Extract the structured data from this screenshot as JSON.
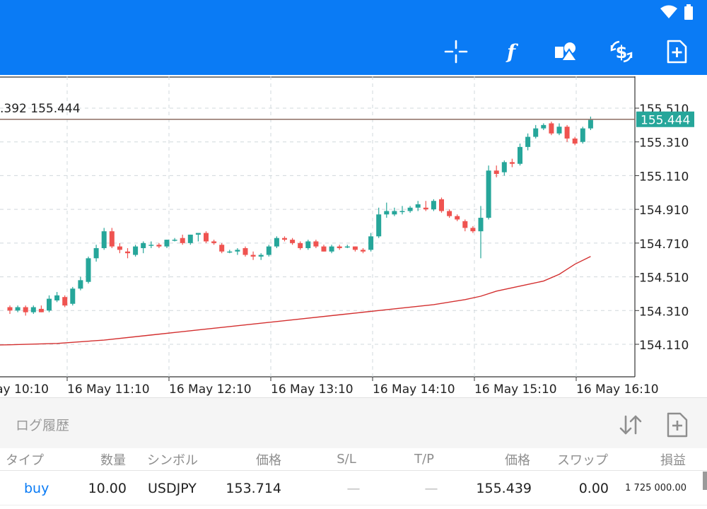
{
  "statusbar": {
    "icons": [
      "wifi-icon",
      "battery-icon"
    ]
  },
  "toolbar": {
    "buttons": [
      {
        "name": "crosshair-button",
        "icon": "crosshair-icon"
      },
      {
        "name": "indicators-button",
        "icon": "function-icon"
      },
      {
        "name": "objects-button",
        "icon": "shapes-icon"
      },
      {
        "name": "trade-button",
        "icon": "dollar-arrows-icon"
      },
      {
        "name": "new-order-button",
        "icon": "file-plus-icon"
      }
    ]
  },
  "chart": {
    "ohlc_label": ".392 155.444",
    "current_price": "155.444",
    "colors": {
      "bull": "#26a69a",
      "bear": "#ef5350",
      "ma": "#d32f2f",
      "price_line": "#8d6e63",
      "grid": "#d0d8dc"
    }
  },
  "chart_data": {
    "type": "candlestick",
    "y_ticks": [
      "155.510",
      "155.310",
      "155.110",
      "154.910",
      "154.710",
      "154.510",
      "154.310",
      "154.110"
    ],
    "x_ticks": [
      "ay 10:10",
      "16 May 11:10",
      "16 May 12:10",
      "16 May 13:10",
      "16 May 14:10",
      "16 May 15:10",
      "16 May 16:10"
    ],
    "ylim": [
      153.95,
      155.65
    ],
    "current_price": 155.444,
    "candles": [
      [
        154.33,
        154.34,
        154.29,
        154.31
      ],
      [
        154.31,
        154.34,
        154.3,
        154.33
      ],
      [
        154.33,
        154.34,
        154.28,
        154.3
      ],
      [
        154.3,
        154.34,
        154.29,
        154.33
      ],
      [
        154.32,
        154.34,
        154.3,
        154.3
      ],
      [
        154.31,
        154.4,
        154.3,
        154.38
      ],
      [
        154.37,
        154.42,
        154.36,
        154.4
      ],
      [
        154.39,
        154.4,
        154.33,
        154.34
      ],
      [
        154.35,
        154.45,
        154.34,
        154.44
      ],
      [
        154.44,
        154.51,
        154.43,
        154.49
      ],
      [
        154.48,
        154.63,
        154.47,
        154.62
      ],
      [
        154.62,
        154.7,
        154.6,
        154.68
      ],
      [
        154.68,
        154.8,
        154.67,
        154.78
      ],
      [
        154.78,
        154.8,
        154.68,
        154.69
      ],
      [
        154.69,
        154.71,
        154.65,
        154.67
      ],
      [
        154.66,
        154.68,
        154.62,
        154.65
      ],
      [
        154.64,
        154.7,
        154.63,
        154.69
      ],
      [
        154.68,
        154.72,
        154.65,
        154.71
      ],
      [
        154.7,
        154.72,
        154.68,
        154.7
      ],
      [
        154.7,
        154.71,
        154.68,
        154.69
      ],
      [
        154.69,
        154.73,
        154.68,
        154.73
      ],
      [
        154.73,
        154.74,
        154.72,
        154.73
      ],
      [
        154.74,
        154.76,
        154.7,
        154.71
      ],
      [
        154.71,
        154.76,
        154.7,
        154.76
      ],
      [
        154.76,
        154.77,
        154.72,
        154.77
      ],
      [
        154.77,
        154.78,
        154.71,
        154.72
      ],
      [
        154.72,
        154.73,
        154.7,
        154.71
      ],
      [
        154.7,
        154.71,
        154.65,
        154.66
      ],
      [
        154.66,
        154.67,
        154.65,
        154.66
      ],
      [
        154.66,
        154.68,
        154.64,
        154.67
      ],
      [
        154.68,
        154.69,
        154.63,
        154.64
      ],
      [
        154.64,
        154.66,
        154.61,
        154.63
      ],
      [
        154.63,
        154.65,
        154.61,
        154.64
      ],
      [
        154.64,
        154.7,
        154.63,
        154.69
      ],
      [
        154.69,
        154.75,
        154.68,
        154.74
      ],
      [
        154.74,
        154.75,
        154.72,
        154.73
      ],
      [
        154.73,
        154.74,
        154.7,
        154.71
      ],
      [
        154.71,
        154.72,
        154.67,
        154.68
      ],
      [
        154.68,
        154.73,
        154.67,
        154.72
      ],
      [
        154.72,
        154.73,
        154.68,
        154.69
      ],
      [
        154.69,
        154.7,
        154.66,
        154.66
      ],
      [
        154.66,
        154.7,
        154.65,
        154.69
      ],
      [
        154.69,
        154.7,
        154.67,
        154.68
      ],
      [
        154.69,
        154.7,
        154.68,
        154.69
      ],
      [
        154.69,
        154.69,
        154.66,
        154.67
      ],
      [
        154.67,
        154.68,
        154.65,
        154.66
      ],
      [
        154.67,
        154.77,
        154.66,
        154.75
      ],
      [
        154.75,
        154.92,
        154.74,
        154.88
      ],
      [
        154.88,
        154.95,
        154.86,
        154.9
      ],
      [
        154.88,
        154.92,
        154.87,
        154.9
      ],
      [
        154.9,
        154.93,
        154.88,
        154.9
      ],
      [
        154.9,
        154.93,
        154.89,
        154.92
      ],
      [
        154.92,
        154.96,
        154.9,
        154.94
      ],
      [
        154.92,
        154.96,
        154.9,
        154.91
      ],
      [
        154.91,
        154.97,
        154.9,
        154.96
      ],
      [
        154.97,
        154.98,
        154.89,
        154.9
      ],
      [
        154.9,
        154.91,
        154.86,
        154.87
      ],
      [
        154.87,
        154.88,
        154.84,
        154.85
      ],
      [
        154.84,
        154.85,
        154.78,
        154.8
      ],
      [
        154.8,
        154.81,
        154.77,
        154.78
      ],
      [
        154.78,
        154.93,
        154.62,
        154.86
      ],
      [
        154.86,
        155.17,
        154.85,
        155.14
      ],
      [
        155.14,
        155.17,
        155.1,
        155.12
      ],
      [
        155.13,
        155.2,
        155.11,
        155.19
      ],
      [
        155.19,
        155.21,
        155.16,
        155.18
      ],
      [
        155.18,
        155.3,
        155.17,
        155.28
      ],
      [
        155.28,
        155.36,
        155.26,
        155.34
      ],
      [
        155.34,
        155.41,
        155.33,
        155.39
      ],
      [
        155.39,
        155.42,
        155.38,
        155.41
      ],
      [
        155.42,
        155.43,
        155.35,
        155.36
      ],
      [
        155.36,
        155.42,
        155.35,
        155.4
      ],
      [
        155.4,
        155.41,
        155.31,
        155.33
      ],
      [
        155.33,
        155.34,
        155.29,
        155.3
      ],
      [
        155.31,
        155.4,
        155.3,
        155.39
      ],
      [
        155.39,
        155.46,
        155.38,
        155.44
      ]
    ],
    "moving_average": [
      [
        0,
        154.107
      ],
      [
        6,
        154.115
      ],
      [
        12,
        154.135
      ],
      [
        18,
        154.165
      ],
      [
        24,
        154.195
      ],
      [
        30,
        154.225
      ],
      [
        36,
        154.255
      ],
      [
        42,
        154.285
      ],
      [
        48,
        154.315
      ],
      [
        54,
        154.345
      ],
      [
        58,
        154.375
      ],
      [
        60,
        154.395
      ],
      [
        62,
        154.425
      ],
      [
        66,
        154.465
      ],
      [
        68,
        154.485
      ],
      [
        70,
        154.525
      ],
      [
        71,
        154.555
      ],
      [
        72,
        154.585
      ],
      [
        74,
        154.631
      ]
    ]
  },
  "panel": {
    "title": "ログ履歴",
    "sort_icon": "sort-arrows-icon",
    "add_icon": "file-plus-icon"
  },
  "table": {
    "headers": [
      "タイプ",
      "数量",
      "シンボル",
      "価格",
      "S/L",
      "T/P",
      "価格",
      "スワップ",
      "損益"
    ],
    "rows": [
      [
        "buy",
        "10.00",
        "USDJPY",
        "153.714",
        "—",
        "—",
        "155.439",
        "0.00",
        "1 725 000.00"
      ]
    ]
  }
}
